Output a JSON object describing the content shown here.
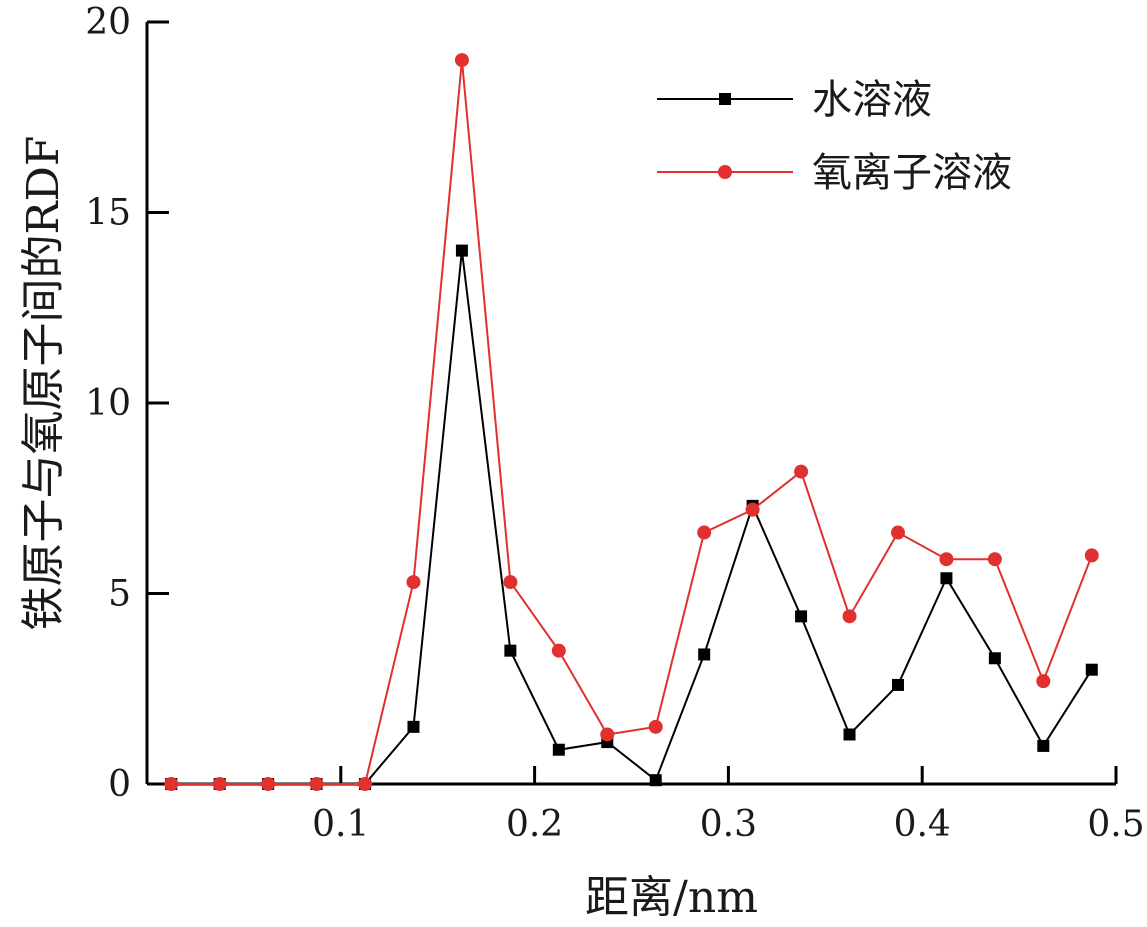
{
  "chart_data": {
    "type": "line",
    "title": "",
    "xlabel": "距离/nm",
    "ylabel": "铁原子与氧原子间的RDF",
    "xlim": [
      0,
      0.5
    ],
    "ylim": [
      0,
      20
    ],
    "xticks": [
      0.1,
      0.2,
      0.3,
      0.4,
      0.5
    ],
    "xtick_labels": [
      "0.1",
      "0.2",
      "0.3",
      "0.4",
      "0.5"
    ],
    "yticks": [
      0,
      5,
      10,
      15,
      20
    ],
    "ytick_labels": [
      "0",
      "5",
      "10",
      "15",
      "20"
    ],
    "grid": false,
    "legend_position": "top-right",
    "x": [
      0.0125,
      0.0375,
      0.0625,
      0.0875,
      0.1125,
      0.1375,
      0.1625,
      0.1875,
      0.2125,
      0.2375,
      0.2625,
      0.2875,
      0.3125,
      0.3375,
      0.3625,
      0.3875,
      0.4125,
      0.4375,
      0.4625,
      0.4875
    ],
    "series": [
      {
        "name": "水溶液",
        "color": "#000000",
        "marker": "square",
        "values": [
          0,
          0,
          0,
          0,
          0,
          1.5,
          14.0,
          3.5,
          0.9,
          1.1,
          0.1,
          3.4,
          7.3,
          4.4,
          1.3,
          2.6,
          5.4,
          3.3,
          1.0,
          3.0
        ]
      },
      {
        "name": "氧离子溶液",
        "color": "#e03030",
        "marker": "circle",
        "values": [
          0,
          0,
          0,
          0,
          0,
          5.3,
          19.0,
          5.3,
          3.5,
          1.3,
          1.5,
          6.6,
          7.2,
          8.2,
          4.4,
          6.6,
          5.9,
          5.9,
          2.7,
          6.0
        ]
      }
    ]
  }
}
